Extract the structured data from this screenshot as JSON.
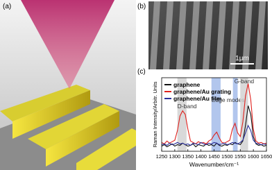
{
  "panels": {
    "a": {
      "label": "(a)"
    },
    "b": {
      "label": "(b)",
      "scale_bar": "1μm"
    }
  },
  "chart_data": {
    "type": "line",
    "panel_label": "(c)",
    "xlabel": "Wavenumber/cm⁻¹",
    "ylabel": "Raman Intensity/Arbitr. Units",
    "xlim": [
      1250,
      1650
    ],
    "xticks": [
      1250,
      1300,
      1350,
      1400,
      1450,
      1500,
      1550,
      1600,
      1650
    ],
    "ylim": [
      0,
      100
    ],
    "legend": "upper left",
    "bands": [
      {
        "label": "D-band",
        "color": "#cfcfcf",
        "ranges": [
          [
            1310,
            1345
          ]
        ]
      },
      {
        "label": "Edge modes",
        "color": "#9fb8e8",
        "ranges": [
          [
            1440,
            1475
          ],
          [
            1522,
            1540
          ]
        ]
      },
      {
        "label": "G-band",
        "color": "#cfcfcf",
        "ranges": [
          [
            1550,
            1580
          ]
        ]
      }
    ],
    "x": [
      1250,
      1260,
      1270,
      1280,
      1290,
      1300,
      1310,
      1320,
      1330,
      1340,
      1350,
      1360,
      1370,
      1380,
      1390,
      1400,
      1410,
      1420,
      1430,
      1440,
      1450,
      1460,
      1470,
      1480,
      1490,
      1500,
      1510,
      1520,
      1530,
      1540,
      1550,
      1560,
      1570,
      1580,
      1590,
      1600,
      1610,
      1620,
      1630,
      1640,
      1650
    ],
    "series": [
      {
        "name": "graphene",
        "color": "#111111",
        "values": [
          7,
          9,
          6,
          8,
          10,
          7,
          9,
          8,
          11,
          9,
          7,
          8,
          10,
          6,
          9,
          8,
          7,
          10,
          8,
          9,
          7,
          11,
          8,
          7,
          9,
          8,
          10,
          9,
          12,
          10,
          9,
          14,
          35,
          62,
          50,
          20,
          10,
          8,
          9,
          7,
          8
        ]
      },
      {
        "name": "graphene/Au grating",
        "color": "#e0201c",
        "values": [
          12,
          10,
          14,
          11,
          13,
          15,
          28,
          48,
          55,
          50,
          30,
          14,
          12,
          10,
          13,
          11,
          12,
          10,
          14,
          16,
          22,
          26,
          18,
          12,
          11,
          13,
          15,
          30,
          38,
          25,
          20,
          40,
          75,
          92,
          70,
          30,
          14,
          11,
          12,
          10,
          11
        ]
      },
      {
        "name": "graphene/Au film",
        "color": "#2a2f9a",
        "values": [
          9,
          10,
          8,
          11,
          9,
          10,
          12,
          10,
          11,
          9,
          10,
          8,
          11,
          10,
          9,
          12,
          10,
          9,
          11,
          10,
          12,
          11,
          9,
          10,
          11,
          9,
          10,
          12,
          11,
          10,
          12,
          15,
          25,
          35,
          28,
          15,
          11,
          10,
          9,
          10,
          9
        ]
      }
    ]
  }
}
